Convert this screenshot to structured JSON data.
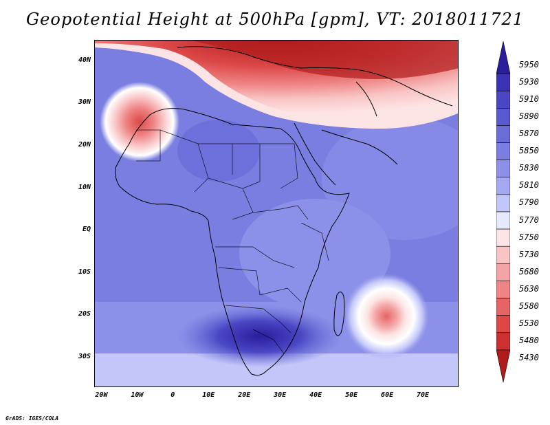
{
  "title": "Geopotential Height at 500hPa [gpm], VT: 2018011721",
  "credit": "GrADS: IGES/COLA",
  "map": {
    "lon_range": [
      -22,
      80
    ],
    "lat_range": [
      -37,
      45
    ],
    "y_ticks": [
      "40N",
      "30N",
      "20N",
      "10N",
      "EQ",
      "10S",
      "20S",
      "30S"
    ],
    "y_tick_values": [
      40,
      30,
      20,
      10,
      0,
      -10,
      -20,
      -30
    ],
    "x_ticks": [
      "20W",
      "10W",
      "0",
      "10E",
      "20E",
      "30E",
      "40E",
      "50E",
      "60E",
      "70E"
    ],
    "x_tick_values": [
      -20,
      -10,
      0,
      10,
      20,
      30,
      40,
      50,
      60,
      70
    ]
  },
  "colorbar": {
    "labels": [
      "5950",
      "5930",
      "5910",
      "5890",
      "5870",
      "5850",
      "5830",
      "5810",
      "5790",
      "5770",
      "5750",
      "5730",
      "5680",
      "5630",
      "5580",
      "5530",
      "5480",
      "5430"
    ],
    "colors": [
      "#2a1e9c",
      "#3a34b4",
      "#4a46c4",
      "#5a5ad0",
      "#6a6cd8",
      "#7a7ee0",
      "#8c90e8",
      "#a4a8f0",
      "#c2c6f8",
      "#e6e8fc",
      "#fde4e4",
      "#f9c4c4",
      "#f4a4a4",
      "#ee8484",
      "#e66464",
      "#dc4848",
      "#cc3030",
      "#b01c1c"
    ]
  }
}
